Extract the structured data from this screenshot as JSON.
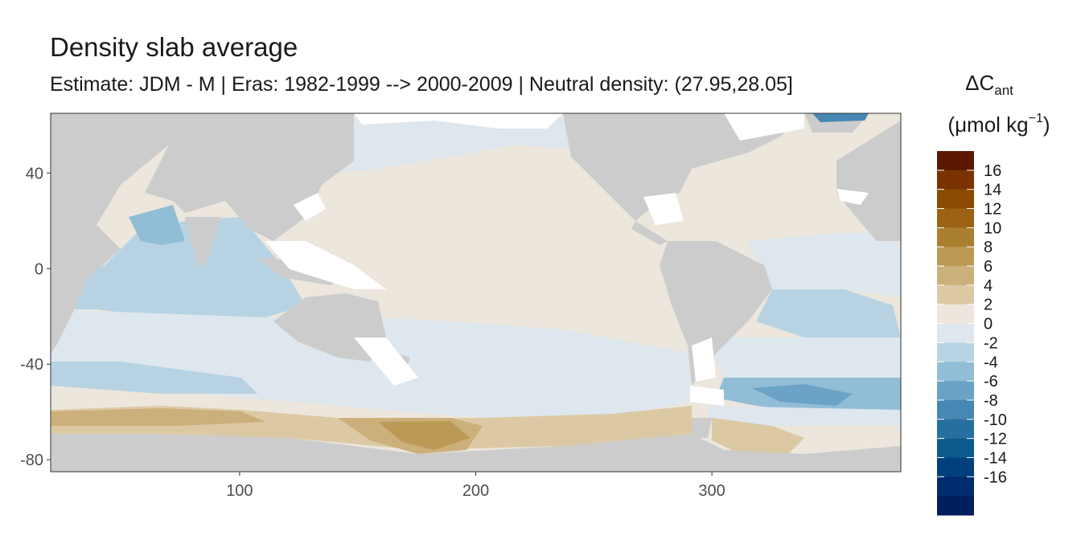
{
  "title": "Density slab average",
  "subtitle": "Estimate: JDM - M | Eras: 1982-1999 --> 2000-2009 | Neutral density: (27.95,28.05]",
  "map": {
    "x_ticks": [
      {
        "value": 100,
        "label": "100"
      },
      {
        "value": 200,
        "label": "200"
      },
      {
        "value": 300,
        "label": "300"
      }
    ],
    "y_ticks": [
      {
        "value": 40,
        "label": "40"
      },
      {
        "value": 0,
        "label": "0"
      },
      {
        "value": -40,
        "label": "-40"
      },
      {
        "value": -80,
        "label": "-80"
      }
    ],
    "xlim": [
      20,
      380
    ],
    "ylim": [
      -85,
      65
    ],
    "land_color": "#cccccc",
    "nodata_color": "#ffffff"
  },
  "legend": {
    "title_main": "ΔC",
    "title_sub": "ant",
    "units_open": "(μmol kg",
    "units_sup": "−1",
    "units_close": ")",
    "bins": [
      {
        "label": "16",
        "color": "#5a1800"
      },
      {
        "label": "14",
        "color": "#7a3300"
      },
      {
        "label": "12",
        "color": "#8a4a00"
      },
      {
        "label": "10",
        "color": "#9a6212"
      },
      {
        "label": "8",
        "color": "#ab7f30"
      },
      {
        "label": "6",
        "color": "#bb9a55"
      },
      {
        "label": "4",
        "color": "#ccb07c"
      },
      {
        "label": "2",
        "color": "#dcc9a4"
      },
      {
        "label": "0",
        "color": "#ece6dc"
      },
      {
        "label": "-2",
        "color": "#dde7ed"
      },
      {
        "label": "-4",
        "color": "#b7d3e3"
      },
      {
        "label": "-6",
        "color": "#92bdd6"
      },
      {
        "label": "-8",
        "color": "#6aa3c6"
      },
      {
        "label": "-10",
        "color": "#4687b3"
      },
      {
        "label": "-12",
        "color": "#26709f"
      },
      {
        "label": "-14",
        "color": "#0d5a8d"
      },
      {
        "label": "-16",
        "color": "#023f7d"
      },
      {
        "label": "",
        "color": "#012c6e"
      },
      {
        "label": "",
        "color": "#001f5e"
      }
    ]
  }
}
